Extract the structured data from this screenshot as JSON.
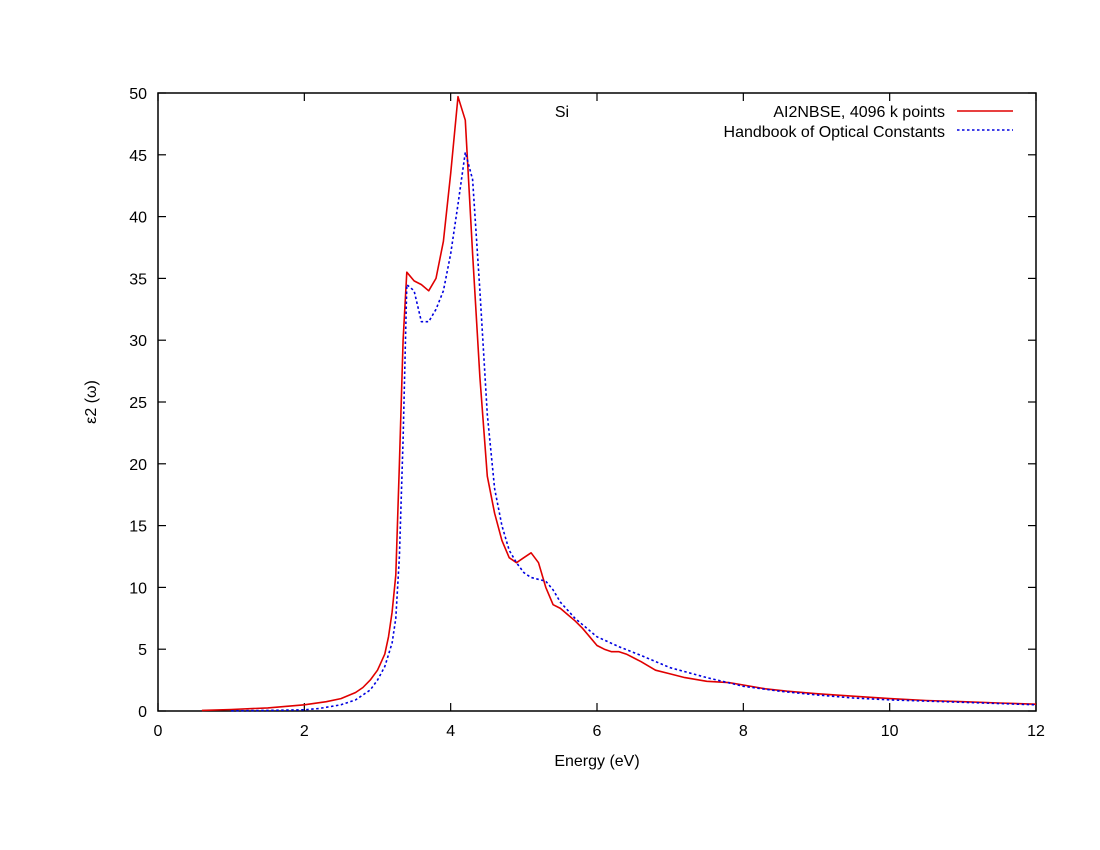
{
  "chart_data": {
    "type": "line",
    "title": "Si",
    "xlabel": "Energy (eV)",
    "ylabel": "ε2 (ω)",
    "xlim": [
      0,
      12
    ],
    "ylim": [
      0,
      50
    ],
    "xticks": [
      0,
      2,
      4,
      6,
      8,
      10,
      12
    ],
    "yticks": [
      0,
      5,
      10,
      15,
      20,
      25,
      30,
      35,
      40,
      45,
      50
    ],
    "grid": false,
    "legend_position": "top-right",
    "series": [
      {
        "name": "AI2NBSE, 4096 k points",
        "color": "#e00000",
        "style": "solid",
        "points": [
          [
            0.6,
            0.05
          ],
          [
            1.0,
            0.12
          ],
          [
            1.5,
            0.25
          ],
          [
            2.0,
            0.5
          ],
          [
            2.3,
            0.75
          ],
          [
            2.5,
            1.0
          ],
          [
            2.7,
            1.5
          ],
          [
            2.8,
            1.9
          ],
          [
            2.9,
            2.5
          ],
          [
            3.0,
            3.3
          ],
          [
            3.1,
            4.6
          ],
          [
            3.15,
            6.0
          ],
          [
            3.2,
            8.0
          ],
          [
            3.25,
            11.0
          ],
          [
            3.3,
            20.0
          ],
          [
            3.35,
            30.0
          ],
          [
            3.4,
            35.5
          ],
          [
            3.5,
            34.8
          ],
          [
            3.6,
            34.5
          ],
          [
            3.7,
            34.0
          ],
          [
            3.8,
            35.0
          ],
          [
            3.9,
            38.0
          ],
          [
            4.0,
            43.5
          ],
          [
            4.1,
            49.7
          ],
          [
            4.2,
            47.8
          ],
          [
            4.3,
            37.0
          ],
          [
            4.4,
            27.0
          ],
          [
            4.5,
            19.0
          ],
          [
            4.6,
            16.0
          ],
          [
            4.7,
            13.8
          ],
          [
            4.8,
            12.4
          ],
          [
            4.9,
            12.0
          ],
          [
            5.0,
            12.4
          ],
          [
            5.1,
            12.8
          ],
          [
            5.2,
            12.0
          ],
          [
            5.3,
            10.0
          ],
          [
            5.4,
            8.6
          ],
          [
            5.5,
            8.3
          ],
          [
            5.6,
            7.8
          ],
          [
            5.7,
            7.3
          ],
          [
            5.8,
            6.7
          ],
          [
            5.9,
            6.0
          ],
          [
            6.0,
            5.3
          ],
          [
            6.1,
            5.0
          ],
          [
            6.2,
            4.8
          ],
          [
            6.3,
            4.8
          ],
          [
            6.4,
            4.6
          ],
          [
            6.6,
            4.0
          ],
          [
            6.8,
            3.3
          ],
          [
            7.0,
            3.0
          ],
          [
            7.2,
            2.7
          ],
          [
            7.5,
            2.4
          ],
          [
            7.8,
            2.3
          ],
          [
            8.0,
            2.1
          ],
          [
            8.3,
            1.8
          ],
          [
            8.6,
            1.6
          ],
          [
            9.0,
            1.4
          ],
          [
            9.5,
            1.2
          ],
          [
            10.0,
            1.0
          ],
          [
            10.5,
            0.85
          ],
          [
            11.0,
            0.75
          ],
          [
            11.5,
            0.65
          ],
          [
            12.0,
            0.55
          ]
        ]
      },
      {
        "name": "Handbook of Optical Constants",
        "color": "#0000e0",
        "style": "dotted",
        "points": [
          [
            1.0,
            0.02
          ],
          [
            1.5,
            0.05
          ],
          [
            2.0,
            0.1
          ],
          [
            2.2,
            0.2
          ],
          [
            2.5,
            0.5
          ],
          [
            2.7,
            0.9
          ],
          [
            2.9,
            1.7
          ],
          [
            3.0,
            2.5
          ],
          [
            3.1,
            3.6
          ],
          [
            3.2,
            5.5
          ],
          [
            3.25,
            7.5
          ],
          [
            3.3,
            12.5
          ],
          [
            3.35,
            22.0
          ],
          [
            3.4,
            34.5
          ],
          [
            3.5,
            34.0
          ],
          [
            3.6,
            31.5
          ],
          [
            3.7,
            31.5
          ],
          [
            3.8,
            32.5
          ],
          [
            3.9,
            34.0
          ],
          [
            4.0,
            37.0
          ],
          [
            4.1,
            41.0
          ],
          [
            4.2,
            45.2
          ],
          [
            4.3,
            43.0
          ],
          [
            4.4,
            34.0
          ],
          [
            4.5,
            24.0
          ],
          [
            4.6,
            18.0
          ],
          [
            4.7,
            15.0
          ],
          [
            4.8,
            13.0
          ],
          [
            4.9,
            12.0
          ],
          [
            5.0,
            11.2
          ],
          [
            5.1,
            10.8
          ],
          [
            5.3,
            10.5
          ],
          [
            5.4,
            9.8
          ],
          [
            5.5,
            8.8
          ],
          [
            5.7,
            7.5
          ],
          [
            5.9,
            6.5
          ],
          [
            6.0,
            6.0
          ],
          [
            6.3,
            5.2
          ],
          [
            6.6,
            4.5
          ],
          [
            7.0,
            3.5
          ],
          [
            7.5,
            2.7
          ],
          [
            8.0,
            2.0
          ],
          [
            8.5,
            1.6
          ],
          [
            9.0,
            1.3
          ],
          [
            9.5,
            1.05
          ],
          [
            10.0,
            0.9
          ],
          [
            11.0,
            0.7
          ],
          [
            12.0,
            0.5
          ]
        ]
      }
    ]
  }
}
